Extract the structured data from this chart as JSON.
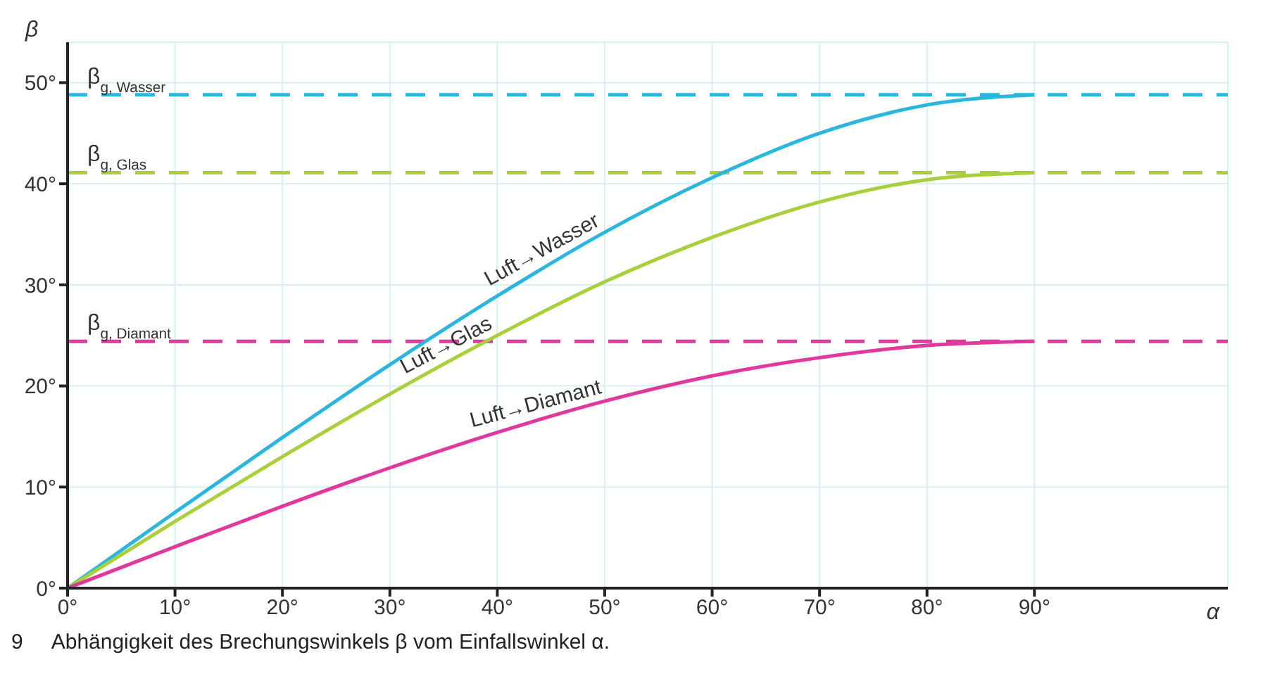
{
  "chart_data": {
    "type": "line",
    "xlabel": "α",
    "ylabel": "β",
    "x": [
      0,
      10,
      20,
      30,
      40,
      50,
      60,
      70,
      80,
      90
    ],
    "series": [
      {
        "name": "Luft→Wasser",
        "color": "#2bb6e0",
        "values": [
          0,
          7.5,
          14.9,
          22.1,
          28.9,
          35.2,
          40.6,
          45.0,
          47.8,
          48.8
        ]
      },
      {
        "name": "Luft→Glas",
        "color": "#a9cf3a",
        "values": [
          0,
          6.6,
          13.0,
          19.2,
          25.0,
          30.3,
          34.7,
          38.2,
          40.4,
          41.1
        ]
      },
      {
        "name": "Luft→Diamant",
        "color": "#e0389c",
        "values": [
          0,
          4.1,
          8.1,
          11.9,
          15.4,
          18.5,
          21.0,
          22.8,
          24.0,
          24.4
        ]
      }
    ],
    "xlim": [
      0,
      108
    ],
    "ylim": [
      0,
      54
    ],
    "xticks": [
      {
        "value": 0,
        "label": "0°"
      },
      {
        "value": 10,
        "label": "10°"
      },
      {
        "value": 20,
        "label": "20°"
      },
      {
        "value": 30,
        "label": "30°"
      },
      {
        "value": 40,
        "label": "40°"
      },
      {
        "value": 50,
        "label": "50°"
      },
      {
        "value": 60,
        "label": "60°"
      },
      {
        "value": 70,
        "label": "70°"
      },
      {
        "value": 80,
        "label": "80°"
      },
      {
        "value": 90,
        "label": "90°"
      }
    ],
    "yticks": [
      {
        "value": 0,
        "label": "0°"
      },
      {
        "value": 10,
        "label": "10°"
      },
      {
        "value": 20,
        "label": "20°"
      },
      {
        "value": 30,
        "label": "30°"
      },
      {
        "value": 40,
        "label": "40°"
      },
      {
        "value": 50,
        "label": "50°"
      }
    ],
    "ref_lines": [
      {
        "axis": "y",
        "value": 48.8,
        "label": "β$_{g, Wasser}$",
        "color": "#2bb6e0",
        "line_style": "dashed"
      },
      {
        "axis": "y",
        "value": 41.1,
        "label": "β$_{g, Glas}$",
        "color": "#a9cf3a",
        "line_style": "dashed"
      },
      {
        "axis": "y",
        "value": 24.4,
        "label": "β$_{g, Diamant}$",
        "color": "#e0389c",
        "line_style": "dashed"
      }
    ],
    "grid": true,
    "marker": "none",
    "line_style": "solid",
    "annotations": [
      "9",
      "Abhängigkeit des Brechungswinkels β vom Einfallswinkel α."
    ]
  }
}
